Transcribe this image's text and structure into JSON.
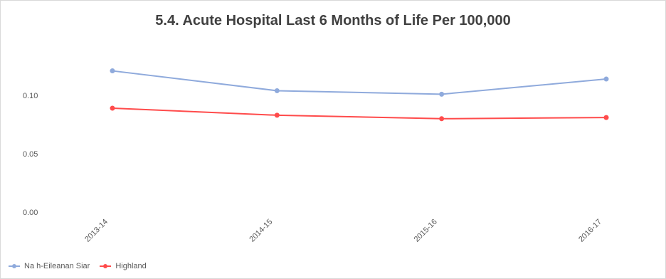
{
  "chart_data": {
    "type": "line",
    "title": "5.4. Acute Hospital Last 6 Months of Life Per 100,000",
    "xlabel": "",
    "ylabel": "",
    "categories": [
      "2013-14",
      "2014-15",
      "2015-16",
      "2016-17"
    ],
    "ylim": [
      0,
      0.125
    ],
    "yticks": [
      "0.00",
      "0.05",
      "0.10"
    ],
    "grid": false,
    "legend_position": "bottom-left",
    "series": [
      {
        "name": "Na h-Eileanan Siar",
        "color": "#8faadc",
        "values": [
          0.121,
          0.104,
          0.101,
          0.114
        ]
      },
      {
        "name": "Highland",
        "color": "#ff4b4b",
        "values": [
          0.089,
          0.083,
          0.08,
          0.081
        ]
      }
    ]
  }
}
